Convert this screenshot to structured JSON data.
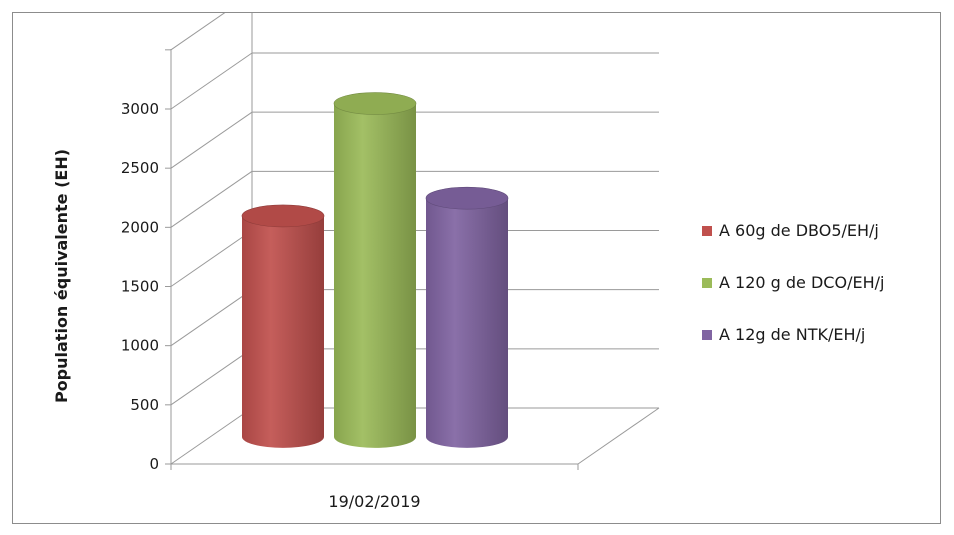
{
  "chart_data": {
    "type": "bar",
    "style": "3d-cylinder",
    "title": "",
    "xlabel": "",
    "ylabel": "Population équivalente (EH)",
    "ylim": [
      0,
      3000
    ],
    "yticks": [
      0,
      500,
      1000,
      1500,
      2000,
      2500,
      3000
    ],
    "ytick_labels": [
      "0",
      "500",
      "1000",
      "1500",
      "2000",
      "2500",
      "3000"
    ],
    "categories": [
      "19/02/2019"
    ],
    "grid": true,
    "legend_position": "right",
    "series": [
      {
        "name": "A 60g de DBO5/EH/j",
        "values": [
          1850
        ],
        "color": "#c0504d"
      },
      {
        "name": "A 120 g de DCO/EH/j",
        "values": [
          2800
        ],
        "color": "#9bbb59"
      },
      {
        "name": "A 12g de NTK/EH/j",
        "values": [
          2000
        ],
        "color": "#8064a2"
      }
    ]
  }
}
